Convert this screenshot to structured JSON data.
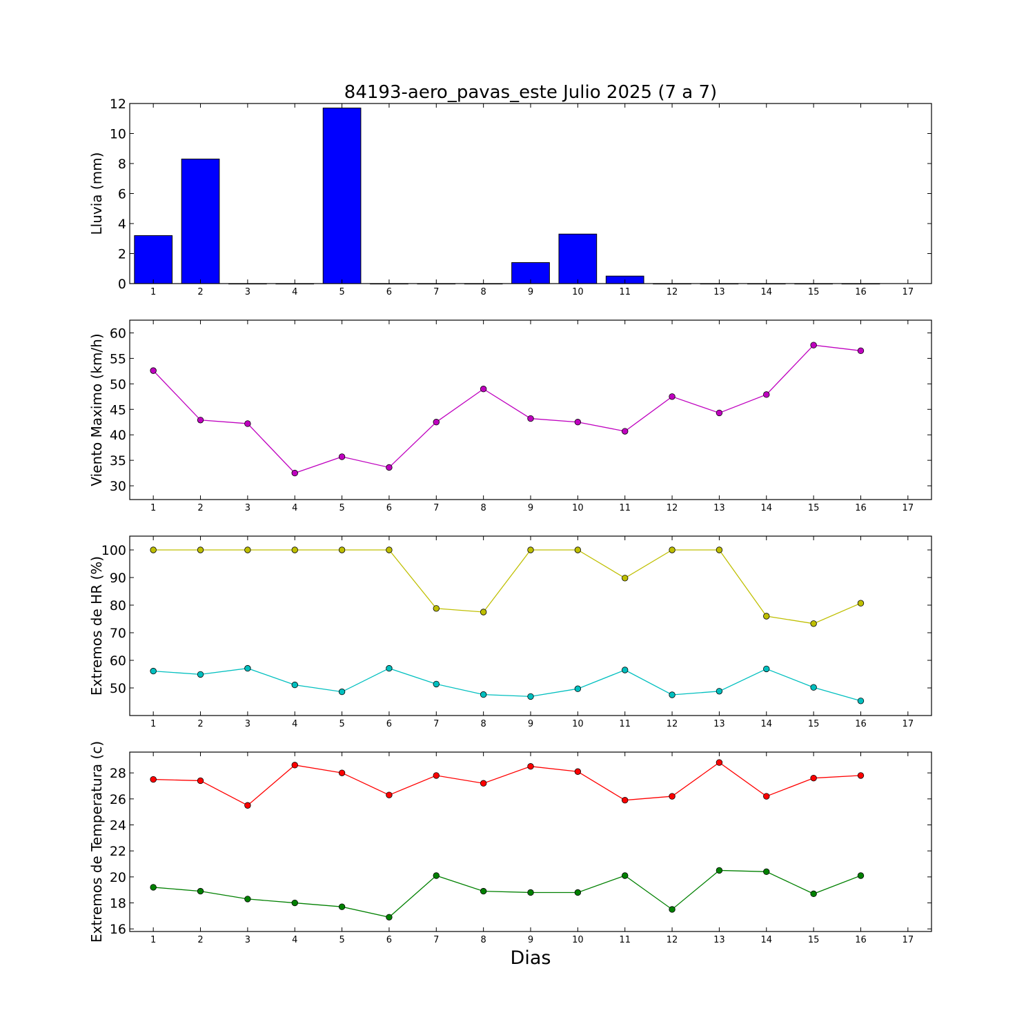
{
  "chart_data": {
    "title": "84193-aero_pavas_este Julio 2025  (7 a 7)",
    "xlabel": "Dias",
    "x_ticks": [
      1,
      2,
      3,
      4,
      5,
      6,
      7,
      8,
      9,
      10,
      11,
      12,
      13,
      14,
      15,
      16,
      17
    ],
    "xlim": [
      0.5,
      17.5
    ],
    "panels": [
      {
        "type": "bar",
        "ylabel": "Lluvia (mm)",
        "ylim": [
          0,
          12
        ],
        "yticks": [
          0,
          2,
          4,
          6,
          8,
          10,
          12
        ],
        "categories": [
          1,
          2,
          3,
          4,
          5,
          6,
          7,
          8,
          9,
          10,
          11,
          12,
          13,
          14,
          15,
          16
        ],
        "series": [
          {
            "color": "#0000ff",
            "values": [
              3.2,
              8.3,
              0,
              0,
              11.7,
              0,
              0,
              0,
              1.4,
              3.3,
              0.5,
              0,
              0,
              0,
              0,
              0
            ]
          }
        ]
      },
      {
        "type": "line",
        "ylabel": "Viento Maximo (km/h)",
        "ylim": [
          27.3,
          62.5
        ],
        "yticks": [
          30,
          35,
          40,
          45,
          50,
          55,
          60
        ],
        "x": [
          1,
          2,
          3,
          4,
          5,
          6,
          7,
          8,
          9,
          10,
          11,
          12,
          13,
          14,
          15,
          16
        ],
        "series": [
          {
            "color": "#bf00bf",
            "values": [
              52.6,
              42.9,
              42.2,
              32.5,
              35.7,
              33.6,
              42.5,
              49.0,
              43.2,
              42.5,
              40.7,
              47.5,
              44.3,
              47.9,
              57.6,
              56.5
            ]
          }
        ]
      },
      {
        "type": "line",
        "ylabel": "Extremos de HR (%)",
        "ylim": [
          40,
          105
        ],
        "yticks": [
          50,
          60,
          70,
          80,
          90,
          100
        ],
        "x": [
          1,
          2,
          3,
          4,
          5,
          6,
          7,
          8,
          9,
          10,
          11,
          12,
          13,
          14,
          15,
          16
        ],
        "series": [
          {
            "color": "#bfbf00",
            "values": [
              100,
              100,
              100,
              100,
              100,
              100,
              78.8,
              77.5,
              100,
              100,
              89.8,
              100,
              100,
              76.0,
              73.3,
              80.7
            ]
          },
          {
            "color": "#00bfbf",
            "values": [
              56.1,
              54.9,
              57.1,
              51.1,
              48.6,
              57.1,
              51.4,
              47.6,
              46.9,
              49.7,
              56.5,
              47.5,
              48.8,
              56.9,
              50.2,
              45.3
            ]
          }
        ]
      },
      {
        "type": "line",
        "ylabel": "Extremos de Temperatura (c)",
        "ylim": [
          15.8,
          29.6
        ],
        "yticks": [
          16,
          18,
          20,
          22,
          24,
          26,
          28
        ],
        "x": [
          1,
          2,
          3,
          4,
          5,
          6,
          7,
          8,
          9,
          10,
          11,
          12,
          13,
          14,
          15,
          16
        ],
        "series": [
          {
            "color": "#ff0000",
            "values": [
              27.5,
              27.4,
              25.5,
              28.6,
              28.0,
              26.3,
              27.8,
              27.2,
              28.5,
              28.1,
              25.9,
              26.2,
              28.8,
              26.2,
              27.6,
              27.8
            ]
          },
          {
            "color": "#008000",
            "values": [
              19.2,
              18.9,
              18.3,
              18.0,
              17.7,
              16.9,
              20.1,
              18.9,
              18.8,
              18.8,
              20.1,
              17.5,
              20.5,
              20.4,
              18.7,
              20.1
            ]
          }
        ]
      }
    ]
  }
}
